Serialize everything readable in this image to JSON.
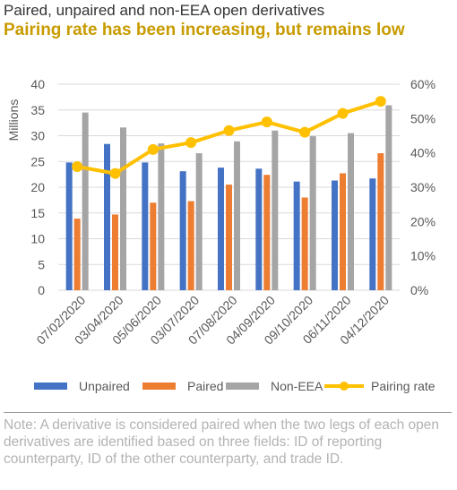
{
  "header": {
    "subtitle": "Paired, unpaired and non-EEA open derivatives",
    "title": "Pairing rate has been increasing, but remains low"
  },
  "colors": {
    "unpaired": "#4472c4",
    "paired": "#ed7d31",
    "non_eea": "#a5a5a5",
    "pairing_rate": "#ffc000",
    "title": "#c89b00",
    "grid": "#d9d9d9",
    "note": "#b3b3b3"
  },
  "chart_data": {
    "type": "bar",
    "categories": [
      "07/02/2020",
      "03/04/2020",
      "05/06/2020",
      "03/07/2020",
      "07/08/2020",
      "04/09/2020",
      "09/10/2020",
      "06/11/2020",
      "04/12/2020"
    ],
    "series": [
      {
        "name": "Unpaired",
        "axis": "left",
        "values": [
          24.8,
          28.4,
          24.8,
          23.1,
          23.8,
          23.6,
          21.1,
          21.3,
          21.7
        ]
      },
      {
        "name": "Paired",
        "axis": "left",
        "values": [
          13.9,
          14.7,
          17.0,
          17.3,
          20.5,
          22.4,
          18.0,
          22.7,
          26.6
        ]
      },
      {
        "name": "Non-EEA",
        "axis": "left",
        "values": [
          34.5,
          31.6,
          28.5,
          26.6,
          28.9,
          31.0,
          29.9,
          30.5,
          35.9
        ]
      },
      {
        "name": "Pairing rate",
        "axis": "right",
        "type": "line",
        "values": [
          36,
          34,
          41,
          43,
          46.5,
          49,
          46,
          51.5,
          55
        ]
      }
    ],
    "ylabel": "Millions",
    "ylim": [
      0,
      40
    ],
    "y_ticks": [
      "0",
      "5",
      "10",
      "15",
      "20",
      "25",
      "30",
      "35",
      "40"
    ],
    "y2lim": [
      0,
      60
    ],
    "y2_ticks": [
      "0%",
      "10%",
      "20%",
      "30%",
      "40%",
      "50%",
      "60%"
    ],
    "grid": true,
    "legend_position": "bottom"
  },
  "note": "Note: A derivative is considered paired when the two legs of each open derivatives are identified based on three fields: ID of reporting counterparty, ID of the other counterparty, and trade ID."
}
